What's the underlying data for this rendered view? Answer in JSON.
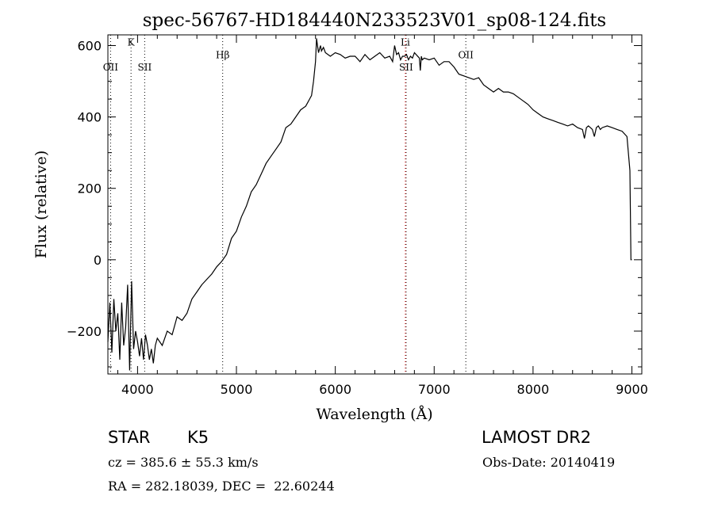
{
  "chart_data": {
    "type": "line",
    "title": "spec-56767-HD184440N233523V01_sp08-124.fits",
    "xlabel": "Wavelength (Å)",
    "ylabel": "Flux (relative)",
    "xlim": [
      3700,
      9100
    ],
    "ylim": [
      -320,
      630
    ],
    "xticks": [
      4000,
      5000,
      6000,
      7000,
      8000,
      9000
    ],
    "yticks": [
      -200,
      0,
      200,
      400,
      600
    ],
    "grid": false,
    "series": [
      {
        "x": [
          3700,
          3720,
          3740,
          3760,
          3780,
          3800,
          3820,
          3840,
          3860,
          3880,
          3900,
          3920,
          3940,
          3960,
          3980,
          4000,
          4020,
          4040,
          4060,
          4080,
          4100,
          4120,
          4140,
          4160,
          4180,
          4200,
          4250,
          4300,
          4350,
          4400,
          4450,
          4500,
          4550,
          4600,
          4650,
          4700,
          4750,
          4800,
          4850,
          4900,
          4950,
          5000,
          5050,
          5100,
          5150,
          5200,
          5250,
          5300,
          5350,
          5400,
          5450,
          5500,
          5550,
          5600,
          5650,
          5700,
          5720,
          5740,
          5760,
          5780,
          5800,
          5810,
          5820,
          5830,
          5840,
          5850,
          5860,
          5880,
          5900,
          5950,
          6000,
          6050,
          6100,
          6150,
          6200,
          6250,
          6300,
          6350,
          6400,
          6450,
          6500,
          6550,
          6580,
          6600,
          6620,
          6640,
          6660,
          6680,
          6700,
          6720,
          6740,
          6760,
          6780,
          6800,
          6850,
          6860,
          6870,
          6880,
          6900,
          6950,
          7000,
          7050,
          7100,
          7150,
          7200,
          7250,
          7300,
          7350,
          7400,
          7450,
          7500,
          7550,
          7600,
          7650,
          7700,
          7750,
          7800,
          7850,
          7900,
          7950,
          8000,
          8050,
          8100,
          8150,
          8200,
          8250,
          8300,
          8350,
          8400,
          8450,
          8500,
          8520,
          8540,
          8560,
          8580,
          8600,
          8620,
          8640,
          8660,
          8680,
          8700,
          8750,
          8800,
          8850,
          8900,
          8950,
          8980,
          8990,
          9000
        ],
        "y": [
          -230,
          -120,
          -260,
          -110,
          -200,
          -150,
          -280,
          -120,
          -240,
          -190,
          -70,
          -310,
          -60,
          -250,
          -200,
          -230,
          -270,
          -220,
          -280,
          -210,
          -240,
          -280,
          -250,
          -290,
          -240,
          -220,
          -240,
          -200,
          -210,
          -160,
          -170,
          -150,
          -110,
          -90,
          -70,
          -55,
          -40,
          -20,
          -5,
          15,
          60,
          80,
          120,
          150,
          190,
          210,
          240,
          270,
          290,
          310,
          330,
          370,
          380,
          400,
          420,
          430,
          440,
          450,
          460,
          500,
          555,
          620,
          600,
          580,
          590,
          600,
          585,
          595,
          580,
          570,
          580,
          575,
          565,
          570,
          570,
          555,
          575,
          560,
          570,
          580,
          565,
          570,
          555,
          600,
          575,
          580,
          560,
          570,
          570,
          575,
          560,
          570,
          565,
          580,
          565,
          530,
          570,
          560,
          565,
          560,
          565,
          545,
          555,
          555,
          540,
          520,
          515,
          510,
          505,
          510,
          490,
          480,
          470,
          480,
          470,
          470,
          465,
          455,
          445,
          435,
          420,
          410,
          400,
          395,
          390,
          385,
          380,
          375,
          380,
          370,
          365,
          340,
          370,
          375,
          370,
          365,
          345,
          370,
          375,
          365,
          370,
          375,
          370,
          365,
          360,
          345,
          250,
          0,
          0
        ]
      }
    ],
    "lines": [
      {
        "label": "K",
        "x": 3934,
        "color": "#000000",
        "style": "dotted",
        "label_y": 600
      },
      {
        "label": "OII",
        "x": 3727,
        "color": "#000000",
        "style": "dotted",
        "label_y": 530
      },
      {
        "label": "SII",
        "x": 4072,
        "color": "#000000",
        "style": "dotted",
        "label_y": 530
      },
      {
        "label": "Hβ",
        "x": 4861,
        "color": "#000000",
        "style": "dotted",
        "label_y": 565
      },
      {
        "label": "Li",
        "x": 6708,
        "color": "#ff0000",
        "style": "dotted",
        "label_y": 600
      },
      {
        "label": "SII",
        "x": 6716,
        "color": "#000000",
        "style": "dotted",
        "label_y": 530
      },
      {
        "label": "OII",
        "x": 7320,
        "color": "#000000",
        "style": "dotted",
        "label_y": 565
      }
    ]
  },
  "info": {
    "object_class": "STAR",
    "subclass": "K5",
    "survey": "LAMOST DR2",
    "cz": "cz = 385.6 ± 55.3 km/s",
    "obs_date": "Obs-Date: 20140419",
    "coords": "RA = 282.18039, DEC =  22.60244"
  }
}
